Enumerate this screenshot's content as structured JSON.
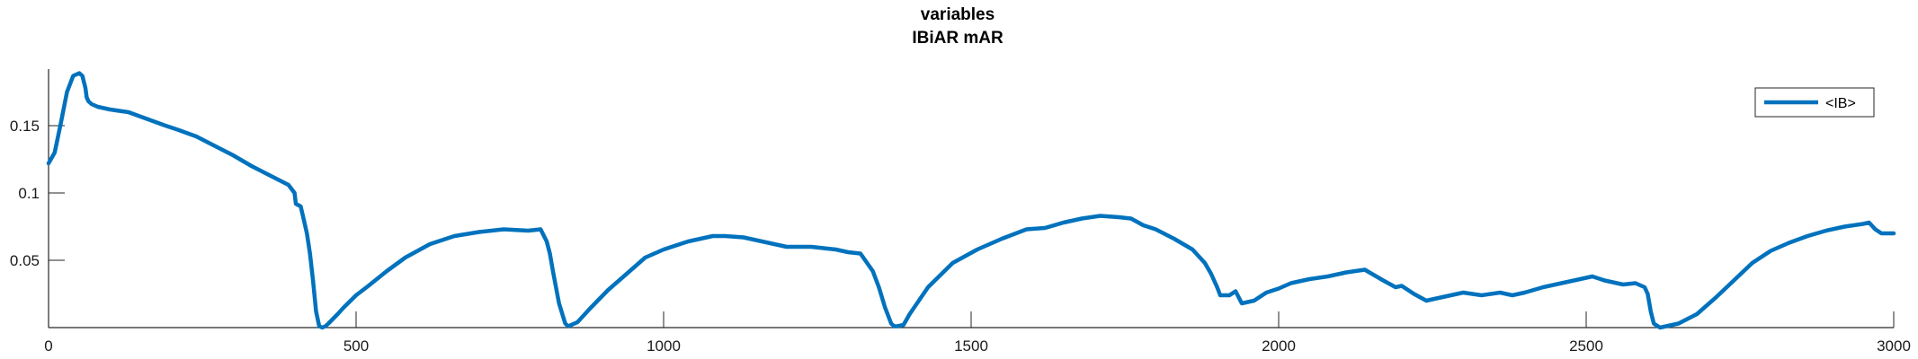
{
  "chart_data": {
    "type": "line",
    "title": "variables",
    "subtitle": "IBiAR mAR",
    "xlabel": "",
    "ylabel": "",
    "xlim": [
      0,
      3000
    ],
    "ylim": [
      0,
      0.192
    ],
    "xticks": [
      0,
      500,
      1000,
      1500,
      2000,
      2500,
      3000
    ],
    "xtick_labels": [
      "0",
      "500",
      "1000",
      "1500",
      "2000",
      "2500",
      "3000"
    ],
    "yticks": [
      0.05,
      0.1,
      0.15
    ],
    "ytick_labels": [
      "0.05",
      "0.1",
      "0.15"
    ],
    "grid": false,
    "legend": {
      "position": "top-right",
      "entries": [
        "<IB>"
      ]
    },
    "series": [
      {
        "name": "<IB>",
        "color": "#0072BD",
        "x": [
          0,
          10,
          20,
          30,
          40,
          50,
          55,
          60,
          62,
          65,
          70,
          80,
          100,
          130,
          160,
          190,
          210,
          240,
          270,
          300,
          330,
          360,
          390,
          400,
          402,
          410,
          415,
          420,
          425,
          430,
          435,
          440,
          445,
          450,
          455,
          470,
          480,
          500,
          520,
          550,
          580,
          620,
          660,
          700,
          740,
          780,
          800,
          810,
          815,
          820,
          825,
          830,
          840,
          845,
          860,
          880,
          910,
          940,
          970,
          1000,
          1040,
          1080,
          1100,
          1130,
          1160,
          1200,
          1240,
          1280,
          1300,
          1320,
          1340,
          1350,
          1360,
          1370,
          1375,
          1380,
          1390,
          1400,
          1430,
          1470,
          1510,
          1550,
          1590,
          1620,
          1650,
          1680,
          1710,
          1740,
          1760,
          1780,
          1800,
          1830,
          1860,
          1880,
          1890,
          1900,
          1905,
          1910,
          1920,
          1930,
          1940,
          1960,
          1980,
          2000,
          2020,
          2050,
          2080,
          2110,
          2140,
          2170,
          2190,
          2200,
          2220,
          2240,
          2260,
          2280,
          2300,
          2330,
          2360,
          2380,
          2400,
          2430,
          2460,
          2490,
          2510,
          2530,
          2560,
          2580,
          2595,
          2600,
          2605,
          2610,
          2620,
          2630,
          2650,
          2680,
          2710,
          2740,
          2770,
          2800,
          2830,
          2860,
          2890,
          2920,
          2950,
          2960,
          2970,
          2980,
          3000
        ],
        "values": [
          0.122,
          0.13,
          0.152,
          0.175,
          0.187,
          0.189,
          0.187,
          0.178,
          0.171,
          0.168,
          0.166,
          0.164,
          0.162,
          0.16,
          0.155,
          0.15,
          0.147,
          0.142,
          0.135,
          0.128,
          0.12,
          0.113,
          0.106,
          0.1,
          0.092,
          0.09,
          0.08,
          0.07,
          0.055,
          0.035,
          0.012,
          0.001,
          0.0,
          0.001,
          0.003,
          0.01,
          0.015,
          0.024,
          0.031,
          0.042,
          0.052,
          0.062,
          0.068,
          0.071,
          0.073,
          0.072,
          0.073,
          0.064,
          0.055,
          0.042,
          0.03,
          0.018,
          0.003,
          0.001,
          0.004,
          0.014,
          0.028,
          0.04,
          0.052,
          0.058,
          0.064,
          0.068,
          0.068,
          0.067,
          0.064,
          0.06,
          0.06,
          0.058,
          0.056,
          0.055,
          0.042,
          0.03,
          0.015,
          0.003,
          0.001,
          0.001,
          0.002,
          0.01,
          0.03,
          0.048,
          0.058,
          0.066,
          0.073,
          0.074,
          0.078,
          0.081,
          0.083,
          0.082,
          0.081,
          0.076,
          0.073,
          0.066,
          0.058,
          0.048,
          0.04,
          0.03,
          0.024,
          0.024,
          0.024,
          0.027,
          0.018,
          0.02,
          0.026,
          0.029,
          0.033,
          0.036,
          0.038,
          0.041,
          0.043,
          0.035,
          0.03,
          0.031,
          0.025,
          0.02,
          0.022,
          0.024,
          0.026,
          0.024,
          0.026,
          0.024,
          0.026,
          0.03,
          0.033,
          0.036,
          0.038,
          0.035,
          0.032,
          0.033,
          0.03,
          0.025,
          0.012,
          0.003,
          0.0,
          0.001,
          0.003,
          0.01,
          0.022,
          0.035,
          0.048,
          0.057,
          0.063,
          0.068,
          0.072,
          0.075,
          0.077,
          0.078,
          0.073,
          0.07,
          0.07
        ]
      }
    ]
  }
}
